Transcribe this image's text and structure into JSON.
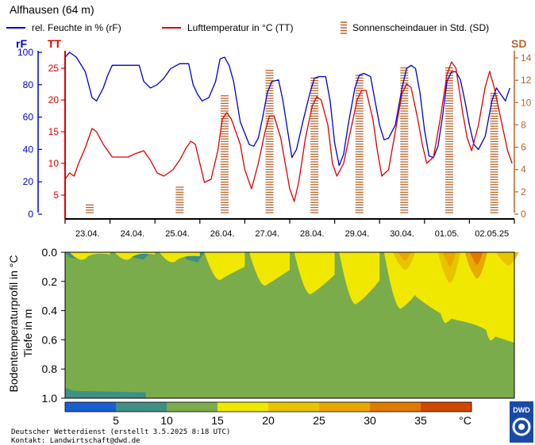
{
  "header": {
    "station": "Alfhausen (64 m)",
    "legend_rh": "rel. Feuchte in % (rF)",
    "legend_tt": "Lufttemperatur in °C (TT)",
    "legend_sd": "Sonnenscheindauer in Std. (SD)"
  },
  "colors": {
    "rh": "#0000cc",
    "tt": "#dd0000",
    "sd": "#b8642a",
    "soil_green": "#7aac4c",
    "soil_teal": "#3f8f84",
    "soil_yellow": "#f0e800",
    "soil_amber": "#e8b800",
    "soil_orange": "#e08a00"
  },
  "axes": {
    "rh_label": "rF",
    "tt_label": "TT",
    "sd_label": "SD",
    "depth_label": "Tiefe in m",
    "profile_label": "Bodentemperaturprofil in °C"
  },
  "chart_data": [
    {
      "type": "line",
      "title": "",
      "dates": [
        "23.04.",
        "24.04.",
        "25.04.",
        "26.04.",
        "27.04.",
        "28.04.",
        "29.04.",
        "30.04.",
        "01.05.",
        "02.05.25"
      ],
      "x_unit": "day index (0 = 23.04. 00:00, 10 = 03.05. 00:00)",
      "rh_axis": {
        "label": "rF",
        "min": 0,
        "max": 100,
        "ticks": [
          0,
          20,
          40,
          60,
          80,
          100
        ]
      },
      "tt_axis": {
        "label": "TT",
        "min": 2,
        "max": 27.5,
        "ticks": [
          5,
          10,
          15,
          20,
          25
        ]
      },
      "sd_axis": {
        "label": "SD",
        "min": 0,
        "max": 14.5,
        "ticks": [
          0,
          2,
          4,
          6,
          8,
          10,
          12,
          14
        ]
      },
      "series": [
        {
          "name": "rel. Feuchte in % (rF)",
          "color": "#0000cc",
          "points": [
            [
              0,
              97
            ],
            [
              0.1,
              100
            ],
            [
              0.25,
              97
            ],
            [
              0.45,
              88
            ],
            [
              0.6,
              72
            ],
            [
              0.7,
              70
            ],
            [
              0.85,
              78
            ],
            [
              0.95,
              86
            ],
            [
              1.05,
              92
            ],
            [
              1.15,
              92
            ],
            [
              1.4,
              92
            ],
            [
              1.65,
              92
            ],
            [
              1.75,
              82
            ],
            [
              1.9,
              78
            ],
            [
              2.05,
              80
            ],
            [
              2.2,
              84
            ],
            [
              2.35,
              90
            ],
            [
              2.55,
              93
            ],
            [
              2.75,
              93
            ],
            [
              2.85,
              80
            ],
            [
              2.95,
              74
            ],
            [
              3.05,
              70
            ],
            [
              3.2,
              72
            ],
            [
              3.35,
              82
            ],
            [
              3.45,
              96
            ],
            [
              3.55,
              97
            ],
            [
              3.65,
              92
            ],
            [
              3.75,
              82
            ],
            [
              3.9,
              57
            ],
            [
              4.0,
              50
            ],
            [
              4.1,
              43
            ],
            [
              4.2,
              42
            ],
            [
              4.3,
              47
            ],
            [
              4.4,
              60
            ],
            [
              4.5,
              75
            ],
            [
              4.6,
              82
            ],
            [
              4.75,
              83
            ],
            [
              4.85,
              70
            ],
            [
              4.95,
              52
            ],
            [
              5.05,
              35
            ],
            [
              5.15,
              40
            ],
            [
              5.3,
              58
            ],
            [
              5.45,
              75
            ],
            [
              5.55,
              84
            ],
            [
              5.65,
              85
            ],
            [
              5.8,
              85
            ],
            [
              5.9,
              70
            ],
            [
              6.0,
              44
            ],
            [
              6.1,
              30
            ],
            [
              6.2,
              37
            ],
            [
              6.3,
              55
            ],
            [
              6.45,
              78
            ],
            [
              6.55,
              86
            ],
            [
              6.65,
              87
            ],
            [
              6.8,
              85
            ],
            [
              6.9,
              70
            ],
            [
              7.0,
              55
            ],
            [
              7.1,
              46
            ],
            [
              7.2,
              47
            ],
            [
              7.35,
              55
            ],
            [
              7.5,
              78
            ],
            [
              7.6,
              90
            ],
            [
              7.7,
              92
            ],
            [
              7.8,
              90
            ],
            [
              7.9,
              75
            ],
            [
              8.0,
              52
            ],
            [
              8.1,
              36
            ],
            [
              8.2,
              35
            ],
            [
              8.3,
              42
            ],
            [
              8.4,
              60
            ],
            [
              8.5,
              82
            ],
            [
              8.6,
              88
            ],
            [
              8.7,
              88
            ],
            [
              8.8,
              83
            ],
            [
              8.9,
              70
            ],
            [
              9.0,
              55
            ],
            [
              9.1,
              43
            ],
            [
              9.2,
              40
            ],
            [
              9.35,
              48
            ],
            [
              9.5,
              70
            ],
            [
              9.6,
              78
            ],
            [
              9.7,
              74
            ],
            [
              9.8,
              70
            ],
            [
              9.9,
              78
            ]
          ]
        },
        {
          "name": "Lufttemperatur in °C (TT)",
          "color": "#dd0000",
          "points": [
            [
              0,
              7.5
            ],
            [
              0.1,
              8.5
            ],
            [
              0.2,
              8
            ],
            [
              0.3,
              10
            ],
            [
              0.45,
              12.5
            ],
            [
              0.6,
              15.5
            ],
            [
              0.7,
              15
            ],
            [
              0.85,
              13
            ],
            [
              0.95,
              12
            ],
            [
              1.05,
              11
            ],
            [
              1.2,
              11
            ],
            [
              1.4,
              11
            ],
            [
              1.55,
              11.5
            ],
            [
              1.75,
              12
            ],
            [
              1.9,
              10.5
            ],
            [
              2.05,
              8.5
            ],
            [
              2.2,
              8
            ],
            [
              2.4,
              9
            ],
            [
              2.55,
              10.5
            ],
            [
              2.7,
              12.5
            ],
            [
              2.8,
              13.5
            ],
            [
              2.9,
              13
            ],
            [
              3.0,
              10
            ],
            [
              3.1,
              7
            ],
            [
              3.25,
              7.5
            ],
            [
              3.4,
              12
            ],
            [
              3.5,
              17
            ],
            [
              3.6,
              18
            ],
            [
              3.7,
              17
            ],
            [
              3.8,
              15
            ],
            [
              3.9,
              13
            ],
            [
              4.0,
              9
            ],
            [
              4.15,
              6
            ],
            [
              4.3,
              10
            ],
            [
              4.45,
              15
            ],
            [
              4.55,
              17.5
            ],
            [
              4.65,
              17.5
            ],
            [
              4.8,
              14
            ],
            [
              4.9,
              10
            ],
            [
              5.0,
              6
            ],
            [
              5.1,
              4
            ],
            [
              5.2,
              7
            ],
            [
              5.35,
              14
            ],
            [
              5.5,
              19
            ],
            [
              5.6,
              20.5
            ],
            [
              5.7,
              20
            ],
            [
              5.85,
              16
            ],
            [
              5.95,
              10
            ],
            [
              6.05,
              8
            ],
            [
              6.2,
              10
            ],
            [
              6.35,
              15
            ],
            [
              6.5,
              20
            ],
            [
              6.6,
              21.5
            ],
            [
              6.7,
              21.5
            ],
            [
              6.85,
              17
            ],
            [
              6.95,
              12
            ],
            [
              7.05,
              8
            ],
            [
              7.2,
              9
            ],
            [
              7.35,
              15
            ],
            [
              7.5,
              21
            ],
            [
              7.6,
              22.5
            ],
            [
              7.7,
              22
            ],
            [
              7.85,
              17
            ],
            [
              7.95,
              13
            ],
            [
              8.05,
              10
            ],
            [
              8.2,
              11
            ],
            [
              8.35,
              17
            ],
            [
              8.5,
              24
            ],
            [
              8.6,
              26
            ],
            [
              8.7,
              25
            ],
            [
              8.85,
              18
            ],
            [
              8.95,
              14
            ],
            [
              9.05,
              12
            ],
            [
              9.2,
              16
            ],
            [
              9.35,
              22
            ],
            [
              9.45,
              24.5
            ],
            [
              9.55,
              22
            ],
            [
              9.7,
              17
            ],
            [
              9.85,
              12
            ],
            [
              9.95,
              10
            ]
          ]
        }
      ],
      "bars": {
        "name": "Sonnenscheindauer in Std. (SD)",
        "color": "#b8642a",
        "days": [
          0,
          1,
          2,
          3,
          4,
          5,
          6,
          7,
          8,
          9
        ],
        "values": [
          1.0,
          0.0,
          2.6,
          10.8,
          13.0,
          12.3,
          12.5,
          13.3,
          13.3,
          10.9
        ]
      }
    },
    {
      "type": "heatmap",
      "title": "",
      "ylabel": "Bodentemperaturprofil in °C / Tiefe in m",
      "depth_ticks": [
        "0.0",
        "0.2",
        "0.4",
        "0.6",
        "0.8",
        "1.0"
      ],
      "depth_range": [
        0,
        1.0
      ],
      "colorbar": {
        "unit": "°C",
        "tick_labels": [
          "5",
          "10",
          "15",
          "20",
          "25",
          "30",
          "35"
        ],
        "bins": [
          {
            "range": [
              0,
              5
            ],
            "color": "#1a5fd1"
          },
          {
            "range": [
              5,
              10
            ],
            "color": "#3f8f84"
          },
          {
            "range": [
              10,
              15
            ],
            "color": "#7aac4c"
          },
          {
            "range": [
              15,
              20
            ],
            "color": "#f0e800"
          },
          {
            "range": [
              20,
              25
            ],
            "color": "#e8c400"
          },
          {
            "range": [
              25,
              30
            ],
            "color": "#e8a800"
          },
          {
            "range": [
              30,
              35
            ],
            "color": "#e07a00"
          },
          {
            "range": [
              35,
              40
            ],
            "color": "#d04800"
          }
        ]
      },
      "warm_front_depth_by_day": [
        0.03,
        0.03,
        0.05,
        0.18,
        0.22,
        0.28,
        0.35,
        0.38,
        0.48,
        0.6
      ]
    }
  ],
  "footer": {
    "line1": "Deutscher Wetterdienst (erstellt 3.5.2025 8:18 UTC)",
    "line2": "Kontakt: Landwirtschaft@dwd.de",
    "logo": "DWD"
  }
}
